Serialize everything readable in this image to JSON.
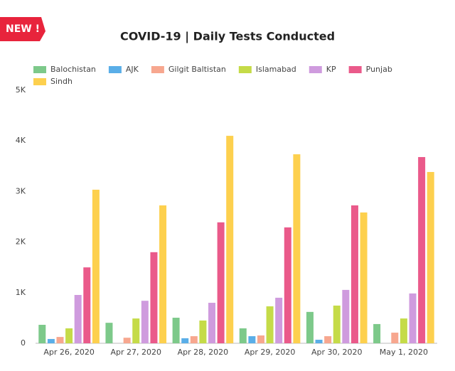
{
  "badge": "NEW !",
  "chart_data": {
    "type": "bar",
    "title": "COVID-19   |   Daily Tests Conducted",
    "categories": [
      "Apr 26, 2020",
      "Apr 27, 2020",
      "Apr 28, 2020",
      "Apr 29, 2020",
      "Apr 30, 2020",
      "May 1, 2020"
    ],
    "series": [
      {
        "name": "Balochistan",
        "color": "#7dc98a",
        "values": [
          365,
          405,
          505,
          295,
          620,
          380
        ]
      },
      {
        "name": "AJK",
        "color": "#5aaee8",
        "values": [
          85,
          0,
          100,
          140,
          70,
          0
        ]
      },
      {
        "name": "Gilgit Baltistan",
        "color": "#f7a78f",
        "values": [
          125,
          110,
          140,
          155,
          140,
          210
        ]
      },
      {
        "name": "Islamabad",
        "color": "#c5db48",
        "values": [
          295,
          490,
          450,
          730,
          745,
          490
        ]
      },
      {
        "name": "KP",
        "color": "#cf9bde",
        "values": [
          955,
          840,
          800,
          900,
          1055,
          985
        ]
      },
      {
        "name": "Punjab",
        "color": "#ea5a8a",
        "values": [
          1500,
          1800,
          2390,
          2290,
          2725,
          3680
        ]
      },
      {
        "name": "Sindh",
        "color": "#fdd04e",
        "values": [
          3035,
          2725,
          4100,
          3735,
          2585,
          3385
        ]
      }
    ],
    "ylim": [
      0,
      5000
    ],
    "yticks": [
      0,
      {
        "value": 1000,
        "label": "1K"
      },
      {
        "value": 2000,
        "label": "2K"
      },
      {
        "value": 3000,
        "label": "3K"
      },
      {
        "value": 4000,
        "label": "4K"
      },
      {
        "value": 5000,
        "label": "5K"
      }
    ],
    "grid": false
  }
}
